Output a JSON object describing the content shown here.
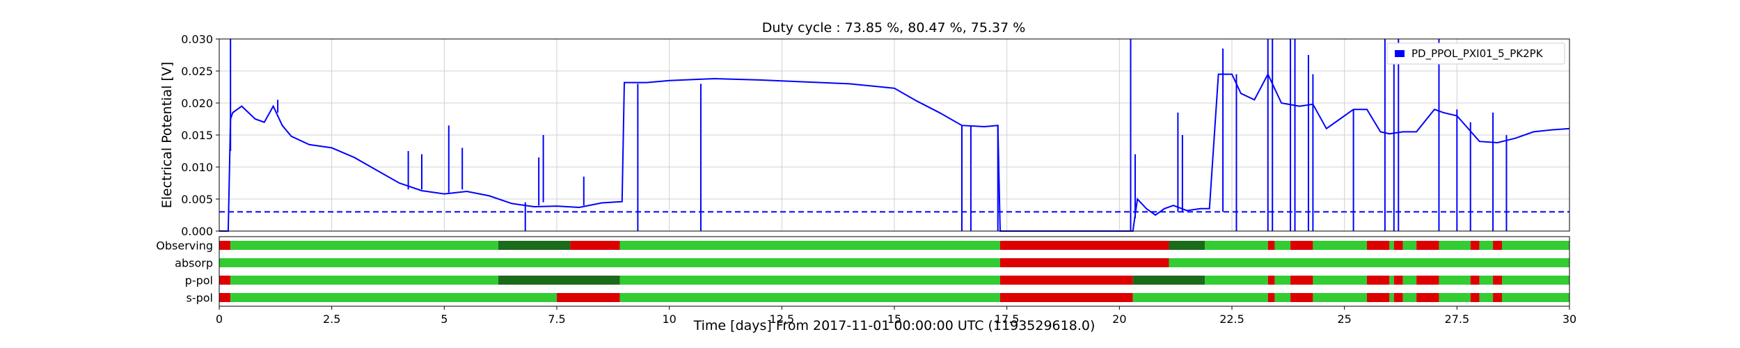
{
  "chart_data": {
    "type": "line",
    "title": "Duty cycle : 73.85 %, 80.47 %, 75.37 %",
    "xlabel": "Time [days] From 2017-11-01 00:00:00 UTC (1193529618.0)",
    "ylabel": "Electrical Potential [V]",
    "xlim": [
      0,
      30
    ],
    "ylim": [
      0,
      0.03
    ],
    "grid": true,
    "legend_position": "top-right",
    "x_ticks": [
      "0",
      "2.5",
      "5",
      "7.5",
      "10",
      "12.5",
      "15",
      "17.5",
      "20",
      "22.5",
      "25",
      "27.5",
      "30"
    ],
    "y_ticks": [
      "0.000",
      "0.005",
      "0.010",
      "0.015",
      "0.020",
      "0.025",
      "0.030"
    ],
    "series": [
      {
        "name": "PD_PPOL_PXI01_5_PK2PK",
        "color": "#0000ff",
        "x": [
          0.0,
          0.2,
          0.25,
          0.3,
          0.5,
          0.8,
          1.0,
          1.2,
          1.4,
          1.6,
          2.0,
          2.5,
          3.0,
          3.5,
          4.0,
          4.5,
          5.0,
          5.5,
          6.0,
          6.5,
          7.0,
          7.5,
          8.0,
          8.5,
          8.95,
          9.0,
          9.5,
          10.0,
          11.0,
          12.0,
          13.0,
          14.0,
          15.0,
          15.5,
          16.0,
          16.5,
          17.0,
          17.3,
          17.35,
          18.0,
          19.0,
          20.0,
          20.3,
          20.4,
          20.6,
          20.8,
          21.0,
          21.2,
          21.5,
          21.8,
          22.0,
          22.2,
          22.5,
          22.7,
          23.0,
          23.3,
          23.6,
          24.0,
          24.3,
          24.6,
          24.9,
          25.2,
          25.5,
          25.8,
          26.0,
          26.3,
          26.6,
          27.0,
          27.2,
          27.5,
          28.0,
          28.4,
          28.8,
          29.2,
          29.6,
          30.0
        ],
        "y": [
          0.0,
          0.0,
          0.0175,
          0.0185,
          0.0195,
          0.0175,
          0.017,
          0.0195,
          0.0165,
          0.0148,
          0.0135,
          0.013,
          0.0115,
          0.0095,
          0.0075,
          0.0063,
          0.0058,
          0.0062,
          0.0055,
          0.0043,
          0.0038,
          0.0039,
          0.0037,
          0.0044,
          0.0046,
          0.0232,
          0.0232,
          0.0235,
          0.0238,
          0.0236,
          0.0233,
          0.023,
          0.0223,
          0.0203,
          0.0185,
          0.0165,
          0.0163,
          0.0165,
          0.0,
          0.0,
          0.0,
          0.0,
          0.0,
          0.005,
          0.0035,
          0.0025,
          0.0035,
          0.004,
          0.0032,
          0.0035,
          0.0035,
          0.0245,
          0.0245,
          0.0215,
          0.0205,
          0.0245,
          0.02,
          0.0195,
          0.0198,
          0.016,
          0.0175,
          0.019,
          0.019,
          0.0155,
          0.0152,
          0.0155,
          0.0155,
          0.019,
          0.0185,
          0.018,
          0.014,
          0.0138,
          0.0145,
          0.0155,
          0.0158,
          0.016
        ]
      }
    ],
    "spikes": [
      {
        "x": 0.25,
        "y0": 0.0125,
        "y1": 0.03
      },
      {
        "x": 1.3,
        "y0": 0.0185,
        "y1": 0.0205
      },
      {
        "x": 4.2,
        "y0": 0.0065,
        "y1": 0.0125
      },
      {
        "x": 4.5,
        "y0": 0.0065,
        "y1": 0.012
      },
      {
        "x": 5.1,
        "y0": 0.006,
        "y1": 0.0165
      },
      {
        "x": 5.4,
        "y0": 0.0065,
        "y1": 0.013
      },
      {
        "x": 6.8,
        "y0": 0.0,
        "y1": 0.0045
      },
      {
        "x": 7.1,
        "y0": 0.004,
        "y1": 0.0115
      },
      {
        "x": 7.2,
        "y0": 0.0045,
        "y1": 0.015
      },
      {
        "x": 8.1,
        "y0": 0.004,
        "y1": 0.0085
      },
      {
        "x": 9.3,
        "y0": 0.0,
        "y1": 0.023
      },
      {
        "x": 10.7,
        "y0": 0.0,
        "y1": 0.023
      },
      {
        "x": 16.5,
        "y0": 0.0,
        "y1": 0.0165
      },
      {
        "x": 16.7,
        "y0": 0.0,
        "y1": 0.0165
      },
      {
        "x": 17.3,
        "y0": 0.0,
        "y1": 0.0165
      },
      {
        "x": 20.25,
        "y0": 0.0,
        "y1": 0.03
      },
      {
        "x": 20.35,
        "y0": 0.002,
        "y1": 0.012
      },
      {
        "x": 21.3,
        "y0": 0.003,
        "y1": 0.0185
      },
      {
        "x": 21.4,
        "y0": 0.003,
        "y1": 0.015
      },
      {
        "x": 22.6,
        "y0": 0.0,
        "y1": 0.0245
      },
      {
        "x": 22.3,
        "y0": 0.003,
        "y1": 0.0285
      },
      {
        "x": 23.3,
        "y0": 0.0,
        "y1": 0.03
      },
      {
        "x": 23.4,
        "y0": 0.0,
        "y1": 0.03
      },
      {
        "x": 23.8,
        "y0": 0.0,
        "y1": 0.03
      },
      {
        "x": 23.9,
        "y0": 0.0,
        "y1": 0.03
      },
      {
        "x": 24.2,
        "y0": 0.0,
        "y1": 0.0275
      },
      {
        "x": 24.3,
        "y0": 0.0,
        "y1": 0.0245
      },
      {
        "x": 25.2,
        "y0": 0.0,
        "y1": 0.019
      },
      {
        "x": 25.9,
        "y0": 0.0,
        "y1": 0.03
      },
      {
        "x": 26.1,
        "y0": 0.0,
        "y1": 0.027
      },
      {
        "x": 26.2,
        "y0": 0.0,
        "y1": 0.03
      },
      {
        "x": 27.1,
        "y0": 0.0,
        "y1": 0.03
      },
      {
        "x": 27.5,
        "y0": 0.0,
        "y1": 0.019
      },
      {
        "x": 27.8,
        "y0": 0.0,
        "y1": 0.017
      },
      {
        "x": 28.3,
        "y0": 0.0,
        "y1": 0.0185
      },
      {
        "x": 28.6,
        "y0": 0.0,
        "y1": 0.015
      }
    ],
    "threshold": {
      "y": 0.003,
      "style": "dashed",
      "color": "#0000ff"
    },
    "state_rows": [
      {
        "label": "Observing",
        "segments": [
          [
            0,
            0.25,
            "off"
          ],
          [
            0.25,
            6.2,
            "on"
          ],
          [
            6.2,
            7.8,
            "mixed"
          ],
          [
            7.8,
            8.9,
            "off"
          ],
          [
            8.9,
            17.35,
            "on"
          ],
          [
            17.35,
            21.1,
            "off"
          ],
          [
            21.1,
            21.9,
            "mixed"
          ],
          [
            21.9,
            23.3,
            "on"
          ],
          [
            23.3,
            23.45,
            "off"
          ],
          [
            23.45,
            23.8,
            "on"
          ],
          [
            23.8,
            24.3,
            "off"
          ],
          [
            24.3,
            25.5,
            "on"
          ],
          [
            25.5,
            26.0,
            "off"
          ],
          [
            26.0,
            26.1,
            "on"
          ],
          [
            26.1,
            26.3,
            "off"
          ],
          [
            26.3,
            26.6,
            "on"
          ],
          [
            26.6,
            27.1,
            "off"
          ],
          [
            27.1,
            27.8,
            "on"
          ],
          [
            27.8,
            28.0,
            "off"
          ],
          [
            28.0,
            28.3,
            "on"
          ],
          [
            28.3,
            28.5,
            "off"
          ],
          [
            28.5,
            30.0,
            "on"
          ]
        ]
      },
      {
        "label": "absorp",
        "segments": [
          [
            0,
            17.35,
            "on"
          ],
          [
            17.35,
            21.1,
            "off"
          ],
          [
            21.1,
            30.0,
            "on"
          ]
        ]
      },
      {
        "label": "p-pol",
        "segments": [
          [
            0,
            0.25,
            "off"
          ],
          [
            0.25,
            6.2,
            "on"
          ],
          [
            6.2,
            8.9,
            "mixed"
          ],
          [
            8.9,
            17.35,
            "on"
          ],
          [
            17.35,
            20.3,
            "off"
          ],
          [
            20.3,
            21.9,
            "mixed"
          ],
          [
            21.9,
            23.3,
            "on"
          ],
          [
            23.3,
            23.45,
            "off"
          ],
          [
            23.45,
            23.8,
            "on"
          ],
          [
            23.8,
            24.3,
            "off"
          ],
          [
            24.3,
            25.5,
            "on"
          ],
          [
            25.5,
            26.0,
            "off"
          ],
          [
            26.0,
            26.1,
            "on"
          ],
          [
            26.1,
            26.3,
            "off"
          ],
          [
            26.3,
            26.6,
            "on"
          ],
          [
            26.6,
            27.1,
            "off"
          ],
          [
            27.1,
            27.8,
            "on"
          ],
          [
            27.8,
            28.0,
            "off"
          ],
          [
            28.0,
            28.3,
            "on"
          ],
          [
            28.3,
            28.5,
            "off"
          ],
          [
            28.5,
            30.0,
            "on"
          ]
        ]
      },
      {
        "label": "s-pol",
        "segments": [
          [
            0,
            0.25,
            "off"
          ],
          [
            0.25,
            7.5,
            "on"
          ],
          [
            7.5,
            8.9,
            "off"
          ],
          [
            8.9,
            17.35,
            "on"
          ],
          [
            17.35,
            20.3,
            "off"
          ],
          [
            20.3,
            23.3,
            "on"
          ],
          [
            23.3,
            23.45,
            "off"
          ],
          [
            23.45,
            23.8,
            "on"
          ],
          [
            23.8,
            24.3,
            "off"
          ],
          [
            24.3,
            25.5,
            "on"
          ],
          [
            25.5,
            26.0,
            "off"
          ],
          [
            26.0,
            26.1,
            "on"
          ],
          [
            26.1,
            26.3,
            "off"
          ],
          [
            26.3,
            26.6,
            "on"
          ],
          [
            26.6,
            27.1,
            "off"
          ],
          [
            27.1,
            27.8,
            "on"
          ],
          [
            27.8,
            28.0,
            "off"
          ],
          [
            28.0,
            28.3,
            "on"
          ],
          [
            28.3,
            28.5,
            "off"
          ],
          [
            28.5,
            30.0,
            "on"
          ]
        ]
      }
    ],
    "state_colors": {
      "on": "#33cc33",
      "off": "#dd0000",
      "mixed": "#1a6b1a"
    }
  }
}
